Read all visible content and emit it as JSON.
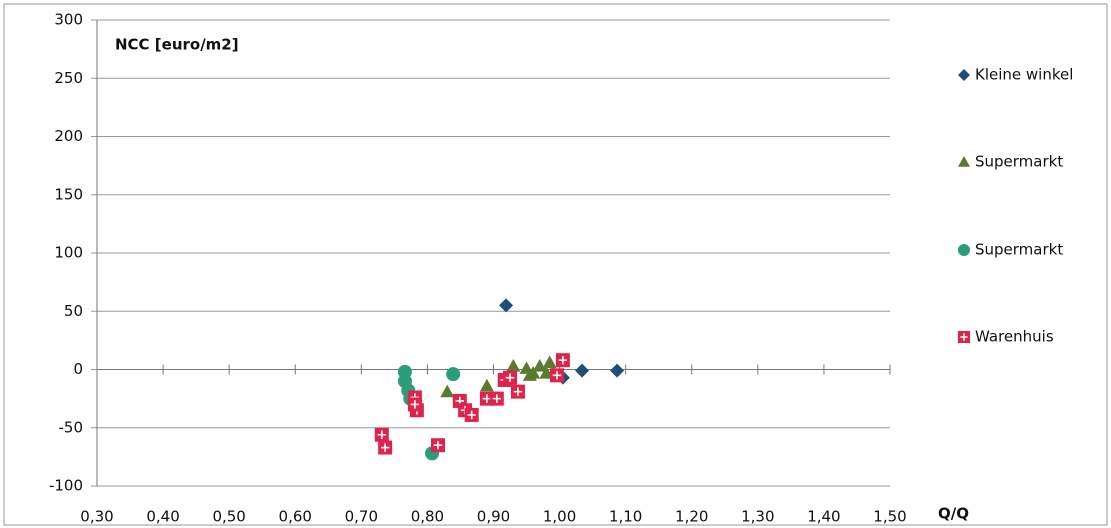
{
  "chart_data": {
    "type": "scatter",
    "y_label": "NCC [euro/m2]",
    "x_label": "Q/Q",
    "xlim": [
      0.3,
      1.5
    ],
    "ylim": [
      -100,
      300
    ],
    "xticks": [
      {
        "value": 0.3,
        "label": "0,30"
      },
      {
        "value": 0.4,
        "label": "0,40"
      },
      {
        "value": 0.5,
        "label": "0,50"
      },
      {
        "value": 0.6,
        "label": "0,60"
      },
      {
        "value": 0.7,
        "label": "0,70"
      },
      {
        "value": 0.8,
        "label": "0,80"
      },
      {
        "value": 0.9,
        "label": "0,90"
      },
      {
        "value": 1.0,
        "label": "1,00"
      },
      {
        "value": 1.1,
        "label": "1,10"
      },
      {
        "value": 1.2,
        "label": "1,20"
      },
      {
        "value": 1.3,
        "label": "1,30"
      },
      {
        "value": 1.4,
        "label": "1,40"
      },
      {
        "value": 1.5,
        "label": "1,50"
      }
    ],
    "yticks": [
      -100,
      -50,
      0,
      50,
      100,
      150,
      200,
      250,
      300
    ],
    "grid": true,
    "series": [
      {
        "name": "Kleine winkel",
        "color": "#1f4e79",
        "marker": "diamond",
        "x": [
          0.919,
          1.005,
          1.034,
          1.087
        ],
        "values": [
          55,
          -7,
          -1,
          -1
        ]
      },
      {
        "name": "Supermarkt",
        "color": "#5a7a2e",
        "marker": "triangle",
        "x": [
          0.83,
          0.89,
          0.93,
          0.95,
          0.955,
          0.96,
          0.97,
          0.98,
          0.985,
          0.99
        ],
        "values": [
          -19,
          -14,
          3,
          1,
          -5,
          -3,
          3,
          -3,
          6,
          -3
        ]
      },
      {
        "name": "Supermarkt",
        "color": "#2a9d7a",
        "marker": "circle",
        "x": [
          0.766,
          0.766,
          0.771,
          0.774,
          0.839,
          0.807
        ],
        "values": [
          -2,
          -10,
          -18,
          -25,
          -4,
          -72
        ]
      },
      {
        "name": "Warenhuis",
        "color": "#e0234a",
        "marker": "plus-square",
        "x": [
          0.731,
          0.736,
          0.781,
          0.784,
          0.781,
          0.816,
          0.849,
          0.857,
          0.867,
          0.89,
          0.905,
          0.917,
          0.925,
          0.937,
          0.996,
          1.005
        ],
        "values": [
          -56,
          -67,
          -24,
          -35,
          -30,
          -65,
          -27,
          -35,
          -39,
          -25,
          -25,
          -9,
          -7,
          -19,
          -5,
          8
        ]
      }
    ]
  }
}
